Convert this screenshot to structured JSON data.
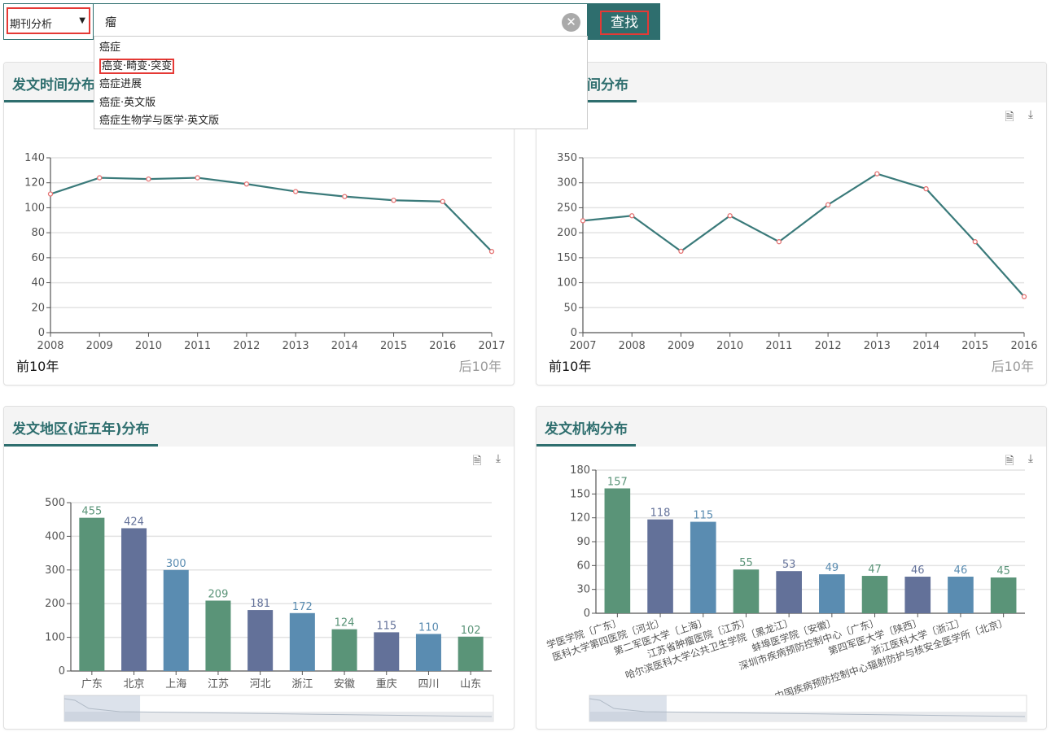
{
  "search": {
    "category": "期刊分析",
    "query": "瘤",
    "button_label": "查找",
    "clear_icon": "close-circle-icon",
    "suggestions": [
      "癌症",
      "癌变·畸变·突变",
      "癌症进展",
      "癌症·英文版",
      "癌症生物学与医学·英文版"
    ],
    "highlighted_suggestion": 1
  },
  "colors": {
    "accent": "#2e6e6e",
    "highlight_box": "#e53935",
    "line": "#3a7a7a",
    "point": "#e57373",
    "bar_green": "#5a9478",
    "bar_purple": "#637199",
    "bar_blue": "#5a8cb1"
  },
  "panels": [
    {
      "title": "发文时间分布",
      "prev_label": "前10年",
      "next_label": "后10年"
    },
    {
      "title": "间分布",
      "prev_label": "前10年",
      "next_label": "后10年"
    },
    {
      "title": "发文地区(近五年)分布"
    },
    {
      "title": "发文机构分布"
    }
  ],
  "chart_data": [
    {
      "type": "line",
      "title": "发文时间分布",
      "categories": [
        "2008",
        "2009",
        "2010",
        "2011",
        "2012",
        "2013",
        "2014",
        "2015",
        "2016",
        "2017"
      ],
      "values": [
        111,
        124,
        123,
        124,
        119,
        113,
        109,
        106,
        105,
        65
      ],
      "ylim": [
        0,
        140
      ],
      "yticks": [
        0,
        20,
        40,
        60,
        80,
        100,
        120,
        140
      ],
      "grid": true
    },
    {
      "type": "line",
      "title": "间分布",
      "categories": [
        "2007",
        "2008",
        "2009",
        "2010",
        "2011",
        "2012",
        "2013",
        "2014",
        "2015",
        "2016"
      ],
      "values": [
        224,
        234,
        163,
        234,
        182,
        256,
        318,
        288,
        182,
        72
      ],
      "ylim": [
        0,
        350
      ],
      "yticks": [
        0,
        50,
        100,
        150,
        200,
        250,
        300,
        350
      ],
      "grid": true
    },
    {
      "type": "bar",
      "title": "发文地区(近五年)分布",
      "categories": [
        "广东",
        "北京",
        "上海",
        "江苏",
        "河北",
        "浙江",
        "安徽",
        "重庆",
        "四川",
        "山东"
      ],
      "values": [
        455,
        424,
        300,
        209,
        181,
        172,
        124,
        115,
        110,
        102
      ],
      "ylim": [
        0,
        500
      ],
      "yticks": [
        0,
        100,
        200,
        300,
        400,
        500
      ],
      "grid": true
    },
    {
      "type": "bar",
      "title": "发文机构分布",
      "categories": [
        "学医学院〔广东〕",
        "医科大学第四医院〔河北〕",
        "第二军医大学〔上海〕",
        "江苏省肿瘤医院〔江苏〕",
        "哈尔滨医科大学公共卫生学院〔黑龙江〕",
        "蚌埠医学院〔安徽〕",
        "深圳市疾病预防控制中心〔广东〕",
        "第四军医大学〔陕西〕",
        "浙江医科大学〔浙江〕",
        "中国疾病预防控制中心辐射防护与核安全医学所〔北京〕"
      ],
      "values": [
        157,
        118,
        115,
        55,
        53,
        49,
        47,
        46,
        46,
        45
      ],
      "ylim": [
        0,
        180
      ],
      "yticks": [
        0,
        30,
        60,
        90,
        120,
        150,
        180
      ],
      "grid": true
    }
  ]
}
